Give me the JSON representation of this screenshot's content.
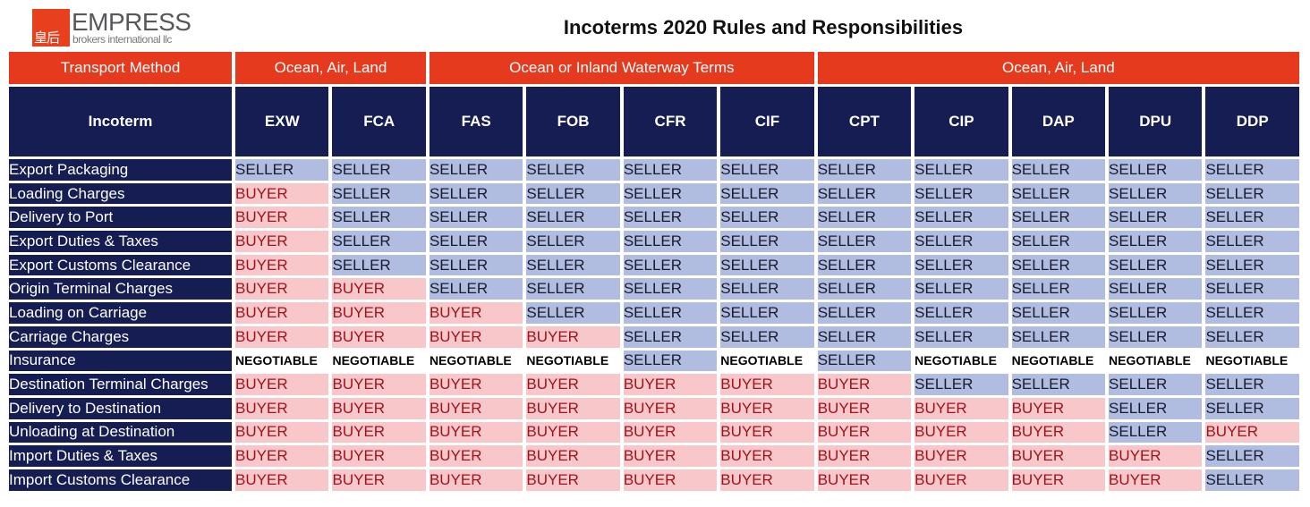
{
  "logo": {
    "mark": "皇后",
    "name": "EMPRESS",
    "tagline": "brokers international llc"
  },
  "title": "Incoterms 2020 Rules and Responsibilities",
  "header": {
    "transport_label": "Transport Method",
    "groups": [
      "Ocean, Air, Land",
      "Ocean or Inland Waterway Terms",
      "Ocean, Air, Land"
    ],
    "incoterm_label": "Incoterm",
    "terms": [
      "EXW",
      "FCA",
      "FAS",
      "FOB",
      "CFR",
      "CIF",
      "CPT",
      "CIP",
      "DAP",
      "DPU",
      "DDP"
    ]
  },
  "rows": [
    {
      "label": "Export Packaging",
      "cells": [
        "SELLER",
        "SELLER",
        "SELLER",
        "SELLER",
        "SELLER",
        "SELLER",
        "SELLER",
        "SELLER",
        "SELLER",
        "SELLER",
        "SELLER"
      ]
    },
    {
      "label": "Loading Charges",
      "cells": [
        "BUYER",
        "SELLER",
        "SELLER",
        "SELLER",
        "SELLER",
        "SELLER",
        "SELLER",
        "SELLER",
        "SELLER",
        "SELLER",
        "SELLER"
      ]
    },
    {
      "label": "Delivery to Port",
      "cells": [
        "BUYER",
        "SELLER",
        "SELLER",
        "SELLER",
        "SELLER",
        "SELLER",
        "SELLER",
        "SELLER",
        "SELLER",
        "SELLER",
        "SELLER"
      ]
    },
    {
      "label": "Export Duties & Taxes",
      "cells": [
        "BUYER",
        "SELLER",
        "SELLER",
        "SELLER",
        "SELLER",
        "SELLER",
        "SELLER",
        "SELLER",
        "SELLER",
        "SELLER",
        "SELLER"
      ]
    },
    {
      "label": "Export Customs Clearance",
      "cells": [
        "BUYER",
        "SELLER",
        "SELLER",
        "SELLER",
        "SELLER",
        "SELLER",
        "SELLER",
        "SELLER",
        "SELLER",
        "SELLER",
        "SELLER"
      ]
    },
    {
      "label": "Origin Terminal Charges",
      "cells": [
        "BUYER",
        "BUYER",
        "SELLER",
        "SELLER",
        "SELLER",
        "SELLER",
        "SELLER",
        "SELLER",
        "SELLER",
        "SELLER",
        "SELLER"
      ]
    },
    {
      "label": "Loading on Carriage",
      "cells": [
        "BUYER",
        "BUYER",
        "BUYER",
        "SELLER",
        "SELLER",
        "SELLER",
        "SELLER",
        "SELLER",
        "SELLER",
        "SELLER",
        "SELLER"
      ]
    },
    {
      "label": "Carriage Charges",
      "cells": [
        "BUYER",
        "BUYER",
        "BUYER",
        "BUYER",
        "SELLER",
        "SELLER",
        "SELLER",
        "SELLER",
        "SELLER",
        "SELLER",
        "SELLER"
      ]
    },
    {
      "label": "Insurance",
      "cells": [
        "NEGOTIABLE",
        "NEGOTIABLE",
        "NEGOTIABLE",
        "NEGOTIABLE",
        "SELLER",
        "NEGOTIABLE",
        "SELLER",
        "NEGOTIABLE",
        "NEGOTIABLE",
        "NEGOTIABLE",
        "NEGOTIABLE"
      ]
    },
    {
      "label": "Destination Terminal Charges",
      "cells": [
        "BUYER",
        "BUYER",
        "BUYER",
        "BUYER",
        "BUYER",
        "BUYER",
        "BUYER",
        "SELLER",
        "SELLER",
        "SELLER",
        "SELLER"
      ]
    },
    {
      "label": "Delivery to Destination",
      "cells": [
        "BUYER",
        "BUYER",
        "BUYER",
        "BUYER",
        "BUYER",
        "BUYER",
        "BUYER",
        "BUYER",
        "BUYER",
        "SELLER",
        "SELLER"
      ]
    },
    {
      "label": "Unloading at Destination",
      "cells": [
        "BUYER",
        "BUYER",
        "BUYER",
        "BUYER",
        "BUYER",
        "BUYER",
        "BUYER",
        "BUYER",
        "BUYER",
        "SELLER",
        "BUYER"
      ]
    },
    {
      "label": "Import Duties & Taxes",
      "cells": [
        "BUYER",
        "BUYER",
        "BUYER",
        "BUYER",
        "BUYER",
        "BUYER",
        "BUYER",
        "BUYER",
        "BUYER",
        "BUYER",
        "SELLER"
      ]
    },
    {
      "label": "Import Customs Clearance",
      "cells": [
        "BUYER",
        "BUYER",
        "BUYER",
        "BUYER",
        "BUYER",
        "BUYER",
        "BUYER",
        "BUYER",
        "BUYER",
        "BUYER",
        "SELLER"
      ]
    }
  ],
  "colors": {
    "header_red": "#e63a1e",
    "header_navy": "#151d52",
    "seller_fill": "#b1bde0",
    "buyer_fill": "#f7c7ca",
    "buyer_text": "#a1121b"
  }
}
